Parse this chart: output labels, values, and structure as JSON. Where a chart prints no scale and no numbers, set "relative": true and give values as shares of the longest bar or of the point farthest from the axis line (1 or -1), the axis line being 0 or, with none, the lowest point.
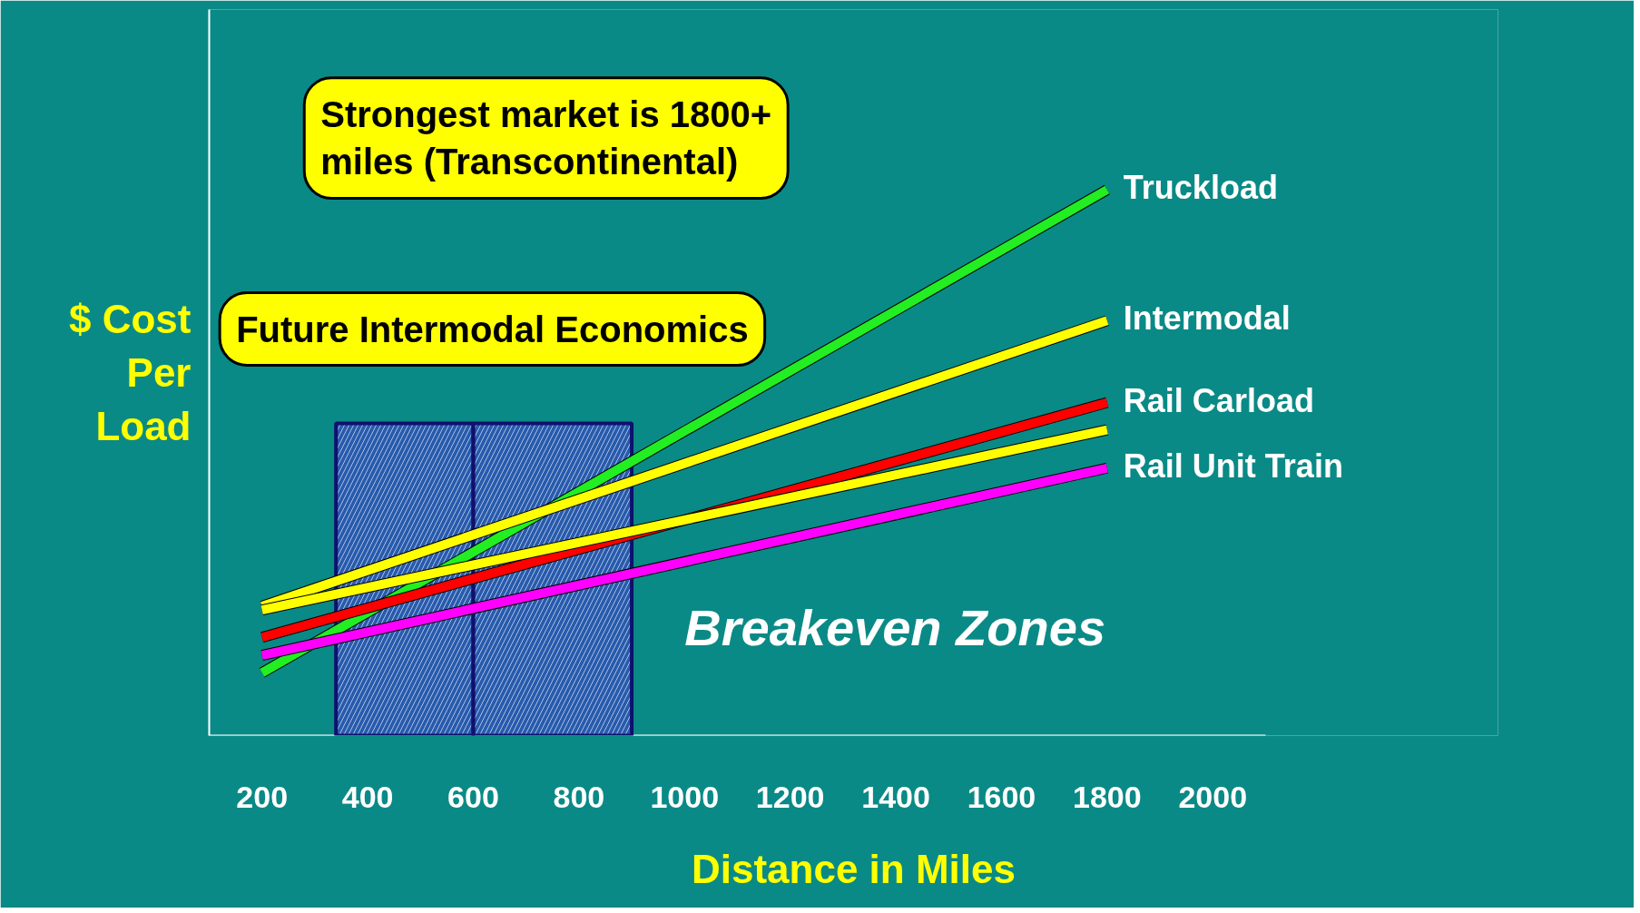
{
  "chart_data": {
    "type": "line",
    "xlabel": "Distance in Miles",
    "ylabel": "$ Cost\nPer\nLoad",
    "relative": true,
    "xlim": [
      100,
      2100
    ],
    "xticks": [
      200,
      400,
      600,
      800,
      1000,
      1200,
      1400,
      1600,
      1800,
      2000
    ],
    "grid": false,
    "marker": "none",
    "line_style": "solid",
    "x": [
      200,
      1800
    ],
    "series": [
      {
        "name": "Truckload",
        "color": "#22ee22",
        "values": [
          0.115,
          1
        ]
      },
      {
        "name": "Intermodal",
        "color": "#ffff00",
        "values": [
          0.237,
          0.76
        ]
      },
      {
        "name": "Rail Carload",
        "color": "#ff0000",
        "values": [
          0.18,
          0.61
        ]
      },
      {
        "color": "#ffff00",
        "values": [
          0.23,
          0.56
        ]
      },
      {
        "name": "Rail Unit Train",
        "color": "#ff00ff",
        "values": [
          0.147,
          0.49
        ]
      }
    ],
    "bands": [
      {
        "axis": "x",
        "from": 340,
        "to": 600,
        "color": "#3c3cc8"
      },
      {
        "axis": "x",
        "from": 600,
        "to": 900,
        "color": "#3c3cc8"
      }
    ],
    "annotations": [
      "Strongest market is 1800+ miles (Transcontinental)",
      "Future Intermodal Economics",
      "Breakeven Zones"
    ]
  }
}
